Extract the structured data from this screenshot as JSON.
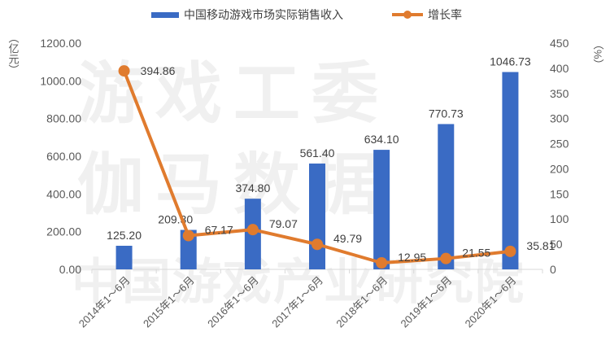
{
  "legend": {
    "bar_label": "中国移动游戏市场实际销售收入",
    "line_label": "增长率"
  },
  "axes": {
    "left_unit": "（亿元）",
    "right_unit": "（%）"
  },
  "watermark": {
    "line1": "游戏工委",
    "line2": "伽马数据",
    "line3": "中国游戏产业研究院"
  },
  "colors": {
    "bar": "#3a6bc4",
    "line": "#e07b2e",
    "axis_text": "#595959",
    "grid": "#d9d9d9"
  },
  "chart_data": {
    "type": "bar",
    "title": "",
    "categories": [
      "2014年1～6月",
      "2015年1～6月",
      "2016年1～6月",
      "2017年1～6月",
      "2018年1～6月",
      "2019年1～6月",
      "2020年1～6月"
    ],
    "series": [
      {
        "name": "中国移动游戏市场实际销售收入",
        "type": "bar",
        "axis": "left",
        "values": [
          125.2,
          209.3,
          374.8,
          561.4,
          634.1,
          770.73,
          1046.73
        ],
        "labels": [
          "125.20",
          "209.30",
          "374.80",
          "561.40",
          "634.10",
          "770.73",
          "1046.73"
        ]
      },
      {
        "name": "增长率",
        "type": "line",
        "axis": "right",
        "values": [
          394.86,
          67.17,
          79.07,
          49.79,
          12.95,
          21.55,
          35.81
        ],
        "labels": [
          "394.86",
          "67.17",
          "79.07",
          "49.79",
          "12.95",
          "21.55",
          "35.81"
        ]
      }
    ],
    "xlabel": "",
    "ylabel": "亿元",
    "y2label": "%",
    "ylim": [
      0,
      1200
    ],
    "y2lim": [
      0,
      450
    ],
    "yticks": [
      "0.00",
      "200.00",
      "400.00",
      "600.00",
      "800.00",
      "1000.00",
      "1200.00"
    ],
    "y2ticks": [
      "0",
      "50",
      "100",
      "150",
      "200",
      "250",
      "300",
      "350",
      "400",
      "450"
    ],
    "grid": false,
    "legend_position": "top"
  }
}
